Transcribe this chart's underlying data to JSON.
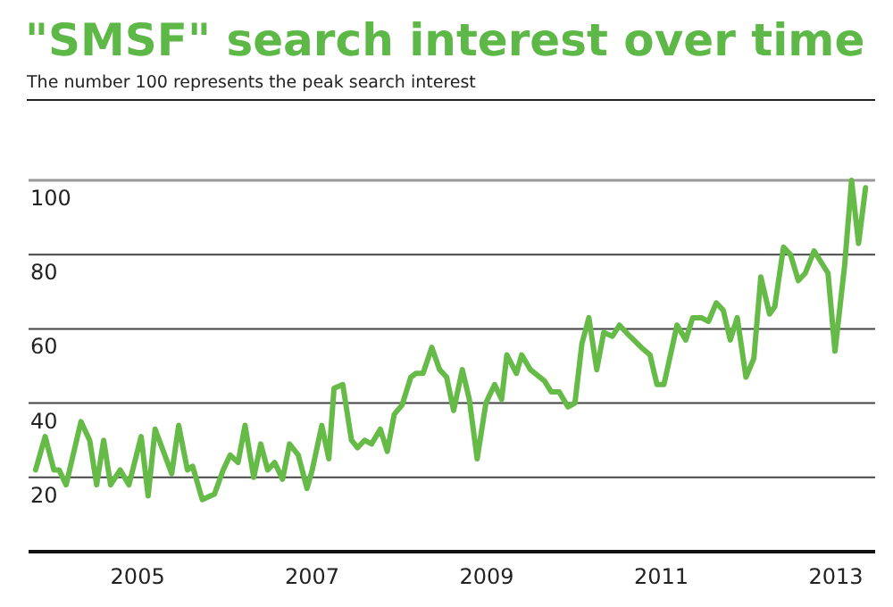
{
  "chart_data": {
    "type": "line",
    "title": "\"SMSF\" search interest over time",
    "subtitle": "The number 100 represents the peak search interest",
    "xlim": [
      2003.75,
      2013.45
    ],
    "xticks": [
      2005,
      2007,
      2009,
      2011,
      2013
    ],
    "ylim": [
      0,
      100
    ],
    "yticks": [
      20,
      40,
      60,
      80,
      100
    ],
    "grid": "y",
    "line_style": "solid",
    "series": [
      {
        "color": "#66bb48",
        "x": [
          2003.83,
          2003.94,
          2004.04,
          2004.1,
          2004.18,
          2004.35,
          2004.45,
          2004.53,
          2004.61,
          2004.69,
          2004.8,
          2004.9,
          2005.04,
          2005.12,
          2005.2,
          2005.39,
          2005.47,
          2005.57,
          2005.63,
          2005.74,
          2005.88,
          2005.98,
          2006.06,
          2006.15,
          2006.23,
          2006.33,
          2006.41,
          2006.49,
          2006.57,
          2006.66,
          2006.74,
          2006.84,
          2006.94,
          2007.0,
          2007.11,
          2007.19,
          2007.25,
          2007.35,
          2007.45,
          2007.52,
          2007.6,
          2007.68,
          2007.78,
          2007.86,
          2007.94,
          2008.03,
          2008.13,
          2008.19,
          2008.27,
          2008.37,
          2008.46,
          2008.54,
          2008.62,
          2008.72,
          2008.8,
          2008.89,
          2008.99,
          2009.09,
          2009.17,
          2009.23,
          2009.34,
          2009.4,
          2009.5,
          2009.66,
          2009.74,
          2009.83,
          2009.93,
          2010.01,
          2010.09,
          2010.17,
          2010.26,
          2010.34,
          2010.44,
          2010.52,
          2010.64,
          2010.77,
          2010.87,
          2010.95,
          2011.03,
          2011.18,
          2011.28,
          2011.36,
          2011.46,
          2011.54,
          2011.63,
          2011.71,
          2011.79,
          2011.87,
          2011.97,
          2012.06,
          2012.14,
          2012.24,
          2012.3,
          2012.4,
          2012.48,
          2012.57,
          2012.65,
          2012.75,
          2012.83,
          2012.91,
          2012.99,
          2013.1,
          2013.18,
          2013.26,
          2013.34
        ],
        "values": [
          22,
          31,
          22,
          22,
          18,
          35,
          30,
          18,
          30,
          18,
          22,
          18,
          31,
          15,
          33,
          21,
          34,
          22,
          23,
          14,
          15.5,
          22,
          26,
          24,
          34,
          20,
          29,
          22,
          24,
          19.5,
          29,
          26,
          17,
          22,
          34,
          25,
          44,
          45,
          30,
          28,
          30,
          29,
          33,
          27,
          37,
          39.5,
          47,
          48,
          48,
          55,
          49,
          47,
          38,
          49,
          41,
          25,
          40,
          45,
          41,
          53,
          48,
          53,
          49,
          46,
          43,
          43,
          39,
          40,
          56,
          63,
          49,
          59,
          58,
          61,
          58,
          55,
          53,
          45,
          45,
          61,
          57,
          63,
          63,
          62,
          67,
          65,
          57,
          63,
          47,
          52,
          74,
          64,
          66,
          82,
          80,
          73,
          75,
          81,
          78,
          75,
          54,
          77,
          100,
          83,
          98
        ]
      }
    ]
  }
}
